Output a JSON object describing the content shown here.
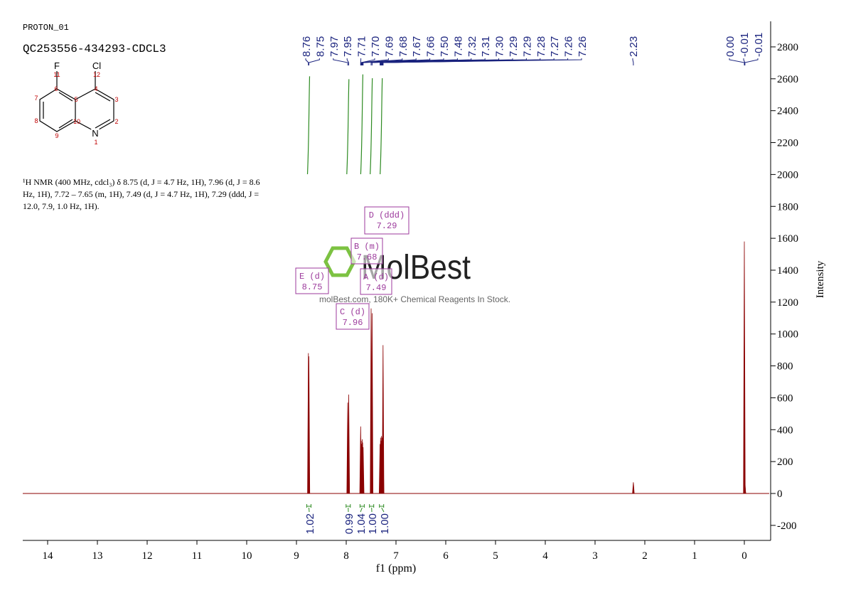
{
  "chart_data": {
    "type": "spectrum",
    "experiment": "PROTON_01",
    "title": "QC253556-434293-CDCL3",
    "xlabel": "f1 (ppm)",
    "ylabel": "Intensity",
    "xlim": [
      14.5,
      -0.5
    ],
    "xticks": [
      14,
      13,
      12,
      11,
      10,
      9,
      8,
      7,
      6,
      5,
      4,
      3,
      2,
      1,
      0
    ],
    "ylim": [
      -300,
      2950
    ],
    "yticks": [
      -200,
      0,
      200,
      400,
      600,
      800,
      1000,
      1200,
      1400,
      1600,
      1800,
      2000,
      2200,
      2400,
      2600,
      2800
    ],
    "color": "#8b0000",
    "peaks": {
      "x": [
        8.76,
        8.75,
        7.97,
        7.95,
        7.71,
        7.7,
        7.69,
        7.68,
        7.67,
        7.66,
        7.5,
        7.48,
        7.32,
        7.31,
        7.3,
        7.29,
        7.29,
        7.28,
        7.27,
        7.26,
        7.26,
        2.23,
        0.0,
        -0.01,
        -0.01
      ],
      "labels": [
        "8.76",
        "8.75",
        "7.97",
        "7.95",
        "7.71",
        "7.70",
        "7.69",
        "7.68",
        "7.67",
        "7.66",
        "7.50",
        "7.48",
        "7.32",
        "7.31",
        "7.30",
        "7.29",
        "7.29",
        "7.28",
        "7.27",
        "7.26",
        "7.26",
        "2.23",
        "0.00",
        "-0.01",
        "-0.01"
      ],
      "values": [
        880,
        860,
        570,
        620,
        420,
        330,
        310,
        340,
        320,
        290,
        1160,
        1130,
        310,
        350,
        330,
        360,
        310,
        350,
        330,
        930,
        290,
        70,
        1580,
        80,
        60
      ]
    },
    "integrals": {
      "x": [
        8.75,
        7.96,
        7.68,
        7.49,
        7.29
      ],
      "values": [
        1.02,
        0.99,
        1.04,
        1.0,
        1.0
      ],
      "value_labels": [
        "1.02",
        "0.99",
        "1.04",
        "1.00",
        "1.00"
      ]
    },
    "multiplets": [
      {
        "label": "E (d)",
        "shift": 8.75
      },
      {
        "label": "C (d)",
        "shift": 7.96
      },
      {
        "label": "B (m)",
        "shift": 7.68
      },
      {
        "label": "A (d)",
        "shift": 7.49
      },
      {
        "label": "D (ddd)",
        "shift": 7.29
      }
    ]
  },
  "structure": {
    "atoms": [
      "F",
      "Cl",
      "N"
    ],
    "numbers": [
      "11",
      "12",
      "6",
      "4",
      "7",
      "5",
      "3",
      "8",
      "10",
      "2",
      "9",
      "1"
    ]
  },
  "description": "¹H NMR (400 MHz, cdcl₃) δ 8.75 (d, J = 4.7 Hz, 1H), 7.96 (d, J = 8.6 Hz, 1H), 7.72 – 7.65 (m, 1H), 7.49 (d, J = 4.7 Hz, 1H), 7.29 (ddd, J = 12.0, 7.9, 1.0 Hz, 1H).",
  "watermark": {
    "name": "MolBest",
    "tagline": "molBest.com, 180K+ Chemical Reagents In Stock."
  }
}
